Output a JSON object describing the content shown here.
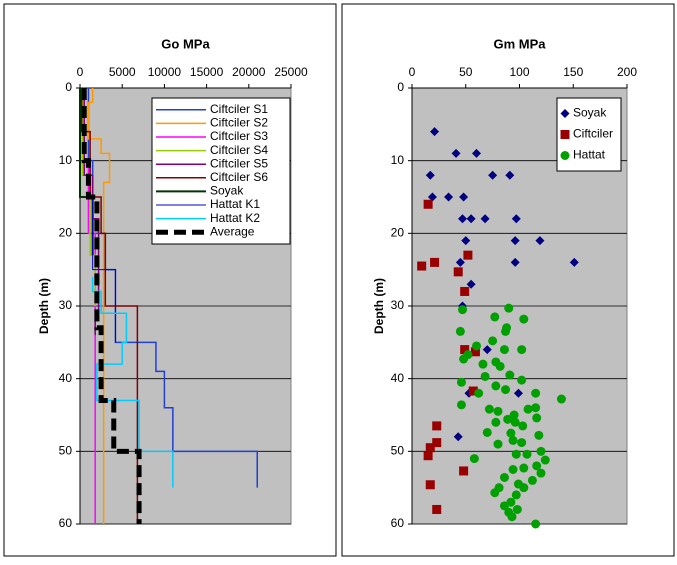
{
  "chart_data": [
    {
      "type": "line",
      "title": "Go MPa",
      "ylabel": "Depth (m)",
      "xlim": [
        0,
        25000
      ],
      "xticks": [
        0,
        5000,
        10000,
        15000,
        20000,
        25000
      ],
      "ylim": [
        0,
        60
      ],
      "yticks": [
        0,
        10,
        20,
        30,
        40,
        50,
        60
      ],
      "y_inverted": true,
      "grid": true,
      "legend": "upper right",
      "series": [
        {
          "name": "Ciftciler S1",
          "color": "#2040d0",
          "width": 1.5,
          "x": [
            1000,
            1000,
            1500,
            1500,
            3000,
            3000,
            4200,
            4200,
            9000,
            9000,
            10000,
            10000,
            11000,
            11000,
            21000,
            21000
          ],
          "values": [
            0,
            10,
            10,
            20,
            20,
            25,
            25,
            35,
            35,
            39,
            39,
            44,
            44,
            50,
            50,
            55
          ]
        },
        {
          "name": "Ciftciler S2",
          "color": "#ff9900",
          "width": 1.5,
          "x": [
            1500,
            1500,
            1000,
            1000,
            2500,
            2500,
            3500,
            3500,
            2800,
            2800
          ],
          "values": [
            0,
            2,
            2,
            7,
            7,
            9,
            9,
            13,
            13,
            60
          ]
        },
        {
          "name": "Ciftciler S3",
          "color": "#ff00ff",
          "width": 1.5,
          "x": [
            500,
            500,
            1000,
            1000,
            1800,
            1800
          ],
          "values": [
            0,
            10,
            10,
            20,
            20,
            60
          ]
        },
        {
          "name": "Ciftciler S4",
          "color": "#99cc00",
          "width": 1.5,
          "x": [
            300,
            300,
            1200,
            1200,
            1800,
            1800
          ],
          "values": [
            0,
            12,
            12,
            23,
            23,
            30
          ]
        },
        {
          "name": "Ciftciler S5",
          "color": "#800080",
          "width": 1.5,
          "x": [
            500,
            500,
            1500,
            1500,
            2200,
            2200,
            1800,
            1800
          ],
          "values": [
            0,
            12,
            12,
            18,
            18,
            32,
            32,
            34
          ]
        },
        {
          "name": "Ciftciler S6",
          "color": "#800000",
          "width": 1.5,
          "x": [
            200,
            200,
            1200,
            1200,
            2500,
            2500,
            3000,
            3000,
            6800,
            6800
          ],
          "values": [
            0,
            6,
            6,
            15,
            15,
            20,
            20,
            30,
            30,
            60
          ]
        },
        {
          "name": "Soyak",
          "color": "#003300",
          "width": 2,
          "x": [
            0,
            0,
            1500,
            1500
          ],
          "values": [
            0,
            15,
            15,
            23
          ]
        },
        {
          "name": "Hattat K1",
          "color": "#0000cc",
          "width": 1,
          "x": [
            1500,
            1500,
            4200,
            4200
          ],
          "values": [
            15,
            25,
            25,
            35
          ]
        },
        {
          "name": "Hattat K2",
          "color": "#00ccff",
          "width": 1.5,
          "x": [
            1500,
            1500,
            2500,
            2500,
            5500,
            5500,
            5000,
            5000,
            2000,
            2000,
            7000,
            7000,
            11000,
            11000
          ],
          "values": [
            26,
            28,
            28,
            31,
            31,
            35,
            35,
            38,
            38,
            43,
            43,
            50,
            50,
            55
          ]
        },
        {
          "name": "Average",
          "color": "#000000",
          "width": 5,
          "dash": true,
          "x": [
            500,
            500,
            1000,
            1000,
            2000,
            2000,
            2500,
            2500,
            4000,
            4000,
            7000,
            7000
          ],
          "values": [
            0,
            10,
            10,
            15,
            15,
            33,
            33,
            43,
            43,
            50,
            50,
            60
          ]
        }
      ]
    },
    {
      "type": "scatter",
      "title": "Gm MPa",
      "ylabel": "Depth (m)",
      "xlim": [
        0,
        200
      ],
      "xticks": [
        0,
        50,
        100,
        150,
        200
      ],
      "ylim": [
        0,
        60
      ],
      "yticks": [
        0,
        10,
        20,
        30,
        40,
        50,
        60
      ],
      "y_inverted": true,
      "grid": true,
      "legend": "upper right",
      "series": [
        {
          "name": "Soyak",
          "color": "#000080",
          "marker": "diamond",
          "x": [
            21,
            41,
            60,
            17,
            75,
            91,
            19,
            34,
            48,
            47,
            55,
            68,
            97,
            50,
            96,
            119,
            45,
            96,
            151,
            55,
            47,
            70,
            53,
            99,
            43
          ],
          "values": [
            6,
            9,
            9,
            12,
            12,
            12,
            15,
            15,
            15,
            18,
            18,
            18,
            18,
            21,
            21,
            21,
            24,
            24,
            24,
            27,
            30,
            36,
            42,
            42,
            48
          ]
        },
        {
          "name": "Ciftciler",
          "color": "#990000",
          "marker": "square",
          "x": [
            15,
            21,
            9,
            52,
            43,
            49,
            49,
            59,
            57,
            23,
            23,
            17,
            15,
            48,
            17,
            23
          ],
          "values": [
            16,
            24,
            24.5,
            23,
            25.3,
            28,
            36,
            36.3,
            41.7,
            46.5,
            48.8,
            49.5,
            50.6,
            52.7,
            54.6,
            58
          ]
        },
        {
          "name": "Hattat",
          "color": "#00a000",
          "marker": "circle",
          "x": [
            47,
            45,
            77,
            90,
            104,
            88,
            87,
            75,
            60,
            102,
            86,
            52,
            48,
            66,
            78,
            82,
            91,
            68,
            46,
            102,
            78,
            87,
            115,
            139,
            62,
            46,
            72,
            80,
            95,
            108,
            115,
            89,
            96,
            103,
            116,
            78,
            70,
            92,
            102,
            118,
            94,
            80,
            58,
            97,
            107,
            120,
            124,
            116,
            104,
            94,
            120,
            86,
            112,
            99,
            104,
            77,
            81,
            97,
            92,
            86,
            98,
            90,
            93,
            115
          ],
          "values": [
            30.5,
            33.5,
            31.5,
            30.3,
            31.8,
            33,
            33.5,
            34.8,
            35.5,
            36,
            36,
            36.7,
            37.3,
            38,
            37.7,
            38.3,
            39.5,
            39.7,
            40.5,
            40.2,
            41,
            41.5,
            42,
            42.8,
            42,
            43.6,
            44.2,
            44.5,
            45,
            44.2,
            44,
            45.6,
            46,
            46.5,
            45.4,
            46,
            47.4,
            47.5,
            48.8,
            47.8,
            48.5,
            49,
            51,
            50.4,
            50.4,
            50,
            51.2,
            52,
            52.3,
            52.5,
            53,
            53.6,
            54,
            54.5,
            55,
            55.7,
            55,
            56,
            57,
            57.5,
            58,
            58.4,
            59,
            60
          ]
        }
      ]
    }
  ]
}
